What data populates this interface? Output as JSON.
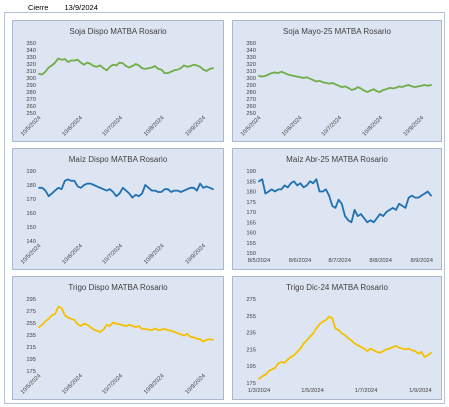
{
  "header": {
    "label": "Cierre",
    "date": "13/9/2024"
  },
  "chart_data": [
    {
      "id": "soja-dispo",
      "type": "line",
      "title": "Soja Dispo MATBA Rosario",
      "color": "#70ad47",
      "ylim": [
        250,
        350
      ],
      "yticks": [
        250,
        260,
        270,
        280,
        290,
        300,
        310,
        320,
        330,
        340,
        350
      ],
      "xlim_day": [
        0,
        130
      ],
      "xticks": [
        {
          "label": "10/5/2024",
          "day": 0
        },
        {
          "label": "10/6/2024",
          "day": 31
        },
        {
          "label": "10/7/2024",
          "day": 61
        },
        {
          "label": "10/8/2024",
          "day": 92
        },
        {
          "label": "10/9/2024",
          "day": 123
        }
      ],
      "xtick_rotate": true,
      "values": [
        306,
        305,
        309,
        315,
        318,
        322,
        328,
        326,
        327,
        323,
        325,
        325,
        326,
        322,
        319,
        322,
        320,
        317,
        316,
        318,
        314,
        311,
        316,
        319,
        318,
        322,
        321,
        317,
        315,
        317,
        320,
        318,
        314,
        313,
        314,
        315,
        317,
        313,
        312,
        307,
        307,
        309,
        311,
        312,
        314,
        318,
        316,
        317,
        319,
        318,
        316,
        312,
        310,
        313,
        314
      ]
    },
    {
      "id": "soja-mayo25",
      "type": "line",
      "title": "Soja Mayo-25 MATBA Rosario",
      "color": "#70ad47",
      "ylim": [
        250,
        350
      ],
      "yticks": [
        250,
        260,
        270,
        280,
        290,
        300,
        310,
        320,
        330,
        340,
        350
      ],
      "xlim_day": [
        0,
        130
      ],
      "xticks": [
        {
          "label": "10/5/2024",
          "day": 0
        },
        {
          "label": "10/6/2024",
          "day": 31
        },
        {
          "label": "10/7/2024",
          "day": 61
        },
        {
          "label": "10/8/2024",
          "day": 92
        },
        {
          "label": "10/9/2024",
          "day": 123
        }
      ],
      "xtick_rotate": true,
      "values": [
        303,
        302,
        303,
        305,
        307,
        308,
        307,
        309,
        307,
        305,
        304,
        303,
        302,
        301,
        300,
        301,
        299,
        297,
        295,
        296,
        294,
        293,
        292,
        293,
        291,
        289,
        287,
        288,
        286,
        283,
        284,
        287,
        285,
        282,
        280,
        282,
        284,
        281,
        280,
        283,
        284,
        286,
        285,
        286,
        288,
        287,
        289,
        290,
        288,
        287,
        288,
        289,
        290,
        289,
        290
      ]
    },
    {
      "id": "maiz-dispo",
      "type": "line",
      "title": "Maíz Dispo MATBA Rosario",
      "color": "#1f6fb4",
      "ylim": [
        140,
        190
      ],
      "yticks": [
        140,
        150,
        160,
        170,
        180,
        190
      ],
      "xlim_day": [
        0,
        130
      ],
      "xticks": [
        {
          "label": "10/5/2024",
          "day": 0
        },
        {
          "label": "10/6/2024",
          "day": 31
        },
        {
          "label": "10/7/2024",
          "day": 61
        },
        {
          "label": "10/8/2024",
          "day": 92
        },
        {
          "label": "10/9/2024",
          "day": 123
        }
      ],
      "xtick_rotate": true,
      "values": [
        178,
        178,
        176,
        172,
        174,
        176,
        178,
        177,
        183,
        184,
        183,
        183,
        179,
        178,
        180,
        181,
        181,
        180,
        179,
        178,
        177,
        176,
        177,
        175,
        172,
        174,
        178,
        176,
        174,
        171,
        173,
        172,
        174,
        180,
        178,
        176,
        176,
        175,
        175,
        177,
        177,
        175,
        176,
        176,
        175,
        176,
        177,
        178,
        178,
        176,
        181,
        178,
        179,
        178,
        177
      ]
    },
    {
      "id": "maiz-abr25",
      "type": "line",
      "title": "Maíz Abr-25 MATBA Rosario",
      "color": "#1f6fb4",
      "ylim": [
        150,
        190
      ],
      "yticks": [
        150,
        155,
        160,
        165,
        170,
        175,
        180,
        185,
        190
      ],
      "xlim_day": [
        0,
        130
      ],
      "xticks": [
        {
          "label": "8/5/2024",
          "day": 0
        },
        {
          "label": "8/6/2024",
          "day": 31
        },
        {
          "label": "8/7/2024",
          "day": 61
        },
        {
          "label": "8/8/2024",
          "day": 92
        },
        {
          "label": "8/9/2024",
          "day": 123
        }
      ],
      "xtick_rotate": false,
      "values": [
        185,
        186,
        179,
        180,
        181,
        180,
        181,
        181,
        183,
        182,
        184,
        185,
        183,
        184,
        182,
        183,
        185,
        184,
        186,
        180,
        180,
        181,
        178,
        173,
        172,
        176,
        174,
        168,
        166,
        165,
        171,
        168,
        169,
        167,
        165,
        166,
        165,
        167,
        169,
        168,
        170,
        171,
        172,
        171,
        174,
        173,
        172,
        177,
        178,
        177,
        177,
        178,
        179,
        180,
        178
      ]
    },
    {
      "id": "trigo-dispo",
      "type": "line",
      "title": "Trigo Dispo MATBA Rosario",
      "color": "#f5c000",
      "ylim": [
        175,
        295
      ],
      "yticks": [
        175,
        195,
        215,
        235,
        255,
        275,
        295
      ],
      "xlim_day": [
        0,
        130
      ],
      "xticks": [
        {
          "label": "10/5/2024",
          "day": 0
        },
        {
          "label": "10/6/2024",
          "day": 31
        },
        {
          "label": "10/7/2024",
          "day": 61
        },
        {
          "label": "10/8/2024",
          "day": 92
        },
        {
          "label": "10/9/2024",
          "day": 123
        }
      ],
      "xtick_rotate": true,
      "values": [
        248,
        252,
        258,
        262,
        268,
        270,
        282,
        280,
        268,
        264,
        262,
        260,
        253,
        250,
        254,
        252,
        248,
        244,
        242,
        240,
        244,
        252,
        250,
        256,
        254,
        253,
        251,
        250,
        252,
        250,
        248,
        250,
        245,
        245,
        244,
        243,
        246,
        243,
        244,
        245,
        243,
        242,
        240,
        238,
        236,
        234,
        237,
        232,
        231,
        229,
        228,
        224,
        227,
        228,
        227
      ]
    },
    {
      "id": "trigo-dic24",
      "type": "line",
      "title": "Trigo Dic-24 MATBA Rosario",
      "color": "#f5c000",
      "ylim": [
        175,
        275
      ],
      "yticks": [
        175,
        195,
        215,
        235,
        255,
        275
      ],
      "xlim_day": [
        0,
        196
      ],
      "xticks": [
        {
          "label": "1/3/2024",
          "day": 0
        },
        {
          "label": "1/5/2024",
          "day": 61
        },
        {
          "label": "1/7/2024",
          "day": 122
        },
        {
          "label": "1/9/2024",
          "day": 184
        }
      ],
      "xtick_rotate": false,
      "values": [
        180,
        183,
        185,
        189,
        191,
        193,
        198,
        200,
        199,
        203,
        206,
        208,
        212,
        216,
        222,
        226,
        230,
        234,
        240,
        245,
        248,
        250,
        254,
        252,
        240,
        238,
        234,
        232,
        228,
        226,
        222,
        220,
        218,
        216,
        213,
        216,
        214,
        212,
        211,
        213,
        215,
        216,
        218,
        219,
        217,
        216,
        215,
        216,
        214,
        213,
        210,
        212,
        206,
        208,
        211
      ]
    }
  ]
}
